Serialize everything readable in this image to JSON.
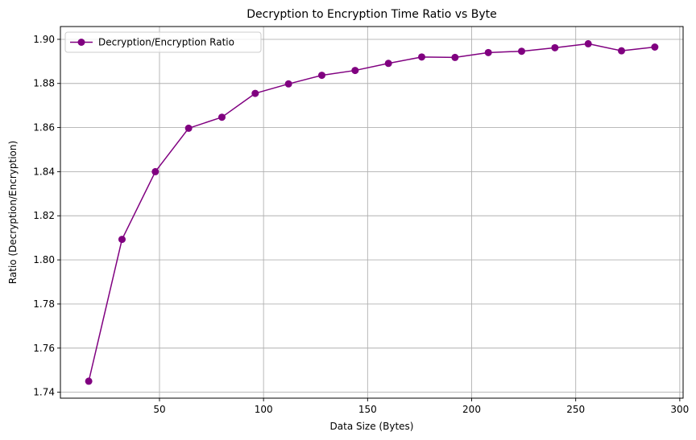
{
  "chart_data": {
    "type": "line",
    "title": "Decryption to Encryption Time Ratio vs Byte",
    "xlabel": "Data Size (Bytes)",
    "ylabel": "Ratio (Decryption/Encryption)",
    "xlim": [
      2.4,
      301.6
    ],
    "ylim": [
      1.7373,
      1.9058
    ],
    "xticks": [
      50,
      100,
      150,
      200,
      250,
      300
    ],
    "yticks": [
      1.74,
      1.76,
      1.78,
      1.8,
      1.82,
      1.84,
      1.86,
      1.88,
      1.9
    ],
    "xtick_labels": [
      "50",
      "100",
      "150",
      "200",
      "250",
      "300"
    ],
    "ytick_labels": [
      "1.74",
      "1.76",
      "1.78",
      "1.80",
      "1.82",
      "1.84",
      "1.86",
      "1.88",
      "1.90"
    ],
    "grid": true,
    "legend_position": "upper-left",
    "series": [
      {
        "name": "Decryption/Encryption Ratio",
        "color": "#800080",
        "marker": "circle",
        "x": [
          16,
          32,
          48,
          64,
          80,
          96,
          112,
          128,
          144,
          160,
          176,
          192,
          208,
          224,
          240,
          256,
          272,
          288
        ],
        "y": [
          1.745,
          1.8093,
          1.84,
          1.8597,
          1.8647,
          1.8755,
          1.8798,
          1.8837,
          1.8859,
          1.8891,
          1.892,
          1.8918,
          1.894,
          1.8946,
          1.8962,
          1.898,
          1.8948,
          1.8965
        ]
      }
    ]
  }
}
